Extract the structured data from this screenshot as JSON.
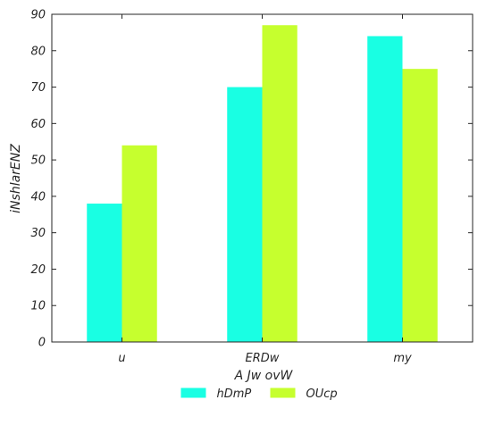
{
  "chart_data": {
    "type": "bar",
    "title": "",
    "xlabel": "A Jw ovW",
    "ylabel": "iNshlarENZ",
    "categories": [
      "u",
      "ERDw",
      "my"
    ],
    "series": [
      {
        "name": "hDmP",
        "values": [
          38,
          70,
          84
        ],
        "color": "#19ffe3"
      },
      {
        "name": "OUcp",
        "values": [
          54,
          87,
          75
        ],
        "color": "#c6ff2e"
      }
    ],
    "ylim": [
      0,
      90
    ],
    "yticks": [
      0,
      10,
      20,
      30,
      40,
      50,
      60,
      70,
      80,
      90
    ],
    "ytick_labels": [
      "0",
      "10",
      "20",
      "30",
      "40",
      "50",
      "60",
      "70",
      "80",
      "90"
    ],
    "grid": false,
    "legend_placement": "bottom-center",
    "colors": {
      "axis": "#262626",
      "background": "#ffffff"
    }
  }
}
